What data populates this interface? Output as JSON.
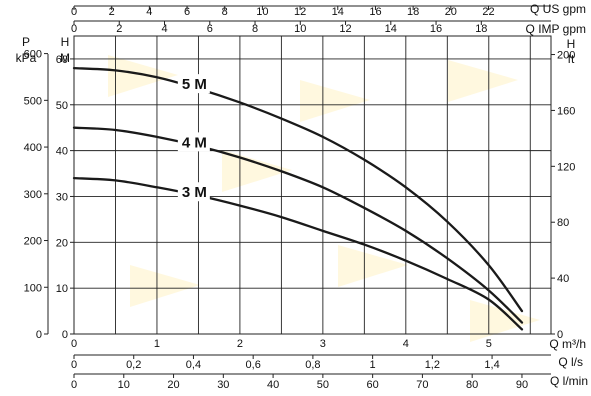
{
  "chart_data": {
    "type": "line",
    "title": "",
    "colors": {
      "background": "#ffffff",
      "grid": "#222222",
      "curve": "#1a1a1a",
      "watermark": "#fff2c4"
    },
    "grid": true,
    "x": {
      "label": "Q m³/h",
      "range": [
        0,
        5.75
      ],
      "ticks": [
        "0",
        "1",
        "2",
        "3",
        "4",
        "5"
      ]
    },
    "y": {
      "label": "H",
      "unit": "M",
      "range": [
        0,
        65
      ],
      "ticks": [
        "0",
        "10",
        "20",
        "30",
        "40",
        "50",
        "60"
      ]
    },
    "secondary_axes": {
      "top_us_gpm": {
        "label": "Q US gpm",
        "ticks": [
          "0",
          "2",
          "4",
          "6",
          "8",
          "10",
          "12",
          "14",
          "16",
          "18",
          "20",
          "22"
        ],
        "per_m3h": 4.403
      },
      "top_imp_gpm": {
        "label": "Q IMP gpm",
        "ticks": [
          "0",
          "2",
          "4",
          "6",
          "8",
          "10",
          "12",
          "14",
          "16",
          "18"
        ],
        "per_m3h": 3.666
      },
      "bottom_ls": {
        "label": "Q l/s",
        "ticks": [
          "0",
          "0,2",
          "0,4",
          "0,6",
          "0,8",
          "1",
          "1,2",
          "1,4"
        ],
        "per_m3h": 0.2778
      },
      "bottom_lmin": {
        "label": "Q l/min",
        "ticks": [
          "0",
          "10",
          "20",
          "30",
          "40",
          "50",
          "60",
          "70",
          "80",
          "90"
        ],
        "per_m3h": 16.667
      },
      "left_pressure": {
        "label": "P",
        "unit": "kPa",
        "ticks": [
          "0",
          "100",
          "200",
          "300",
          "400",
          "500",
          "600"
        ],
        "per_m": 9.81
      },
      "right_ft": {
        "label": "H",
        "unit": "ft",
        "ticks": [
          "0",
          "40",
          "80",
          "120",
          "160",
          "200"
        ],
        "per_m": 3.281
      }
    },
    "series": [
      {
        "name": "5 M",
        "x": [
          0,
          0.5,
          1,
          1.5,
          2,
          2.5,
          3,
          3.5,
          4,
          4.5,
          5,
          5.4
        ],
        "y": [
          58,
          57.5,
          56,
          53.5,
          50.5,
          47,
          43,
          38,
          32,
          24.5,
          15,
          5
        ]
      },
      {
        "name": "4 M",
        "x": [
          0,
          0.5,
          1,
          1.5,
          2,
          2.5,
          3,
          3.5,
          4,
          4.5,
          5,
          5.4
        ],
        "y": [
          45,
          44.5,
          43,
          41,
          38.5,
          35.5,
          32,
          27.5,
          22.5,
          16.5,
          9.5,
          2.5
        ]
      },
      {
        "name": "3 M",
        "x": [
          0,
          0.5,
          1,
          1.5,
          2,
          2.5,
          3,
          3.5,
          4,
          4.5,
          5,
          5.4
        ],
        "y": [
          34,
          33.5,
          32,
          30.2,
          28,
          25.5,
          22.5,
          19.5,
          16,
          12,
          7.5,
          1
        ]
      }
    ]
  }
}
